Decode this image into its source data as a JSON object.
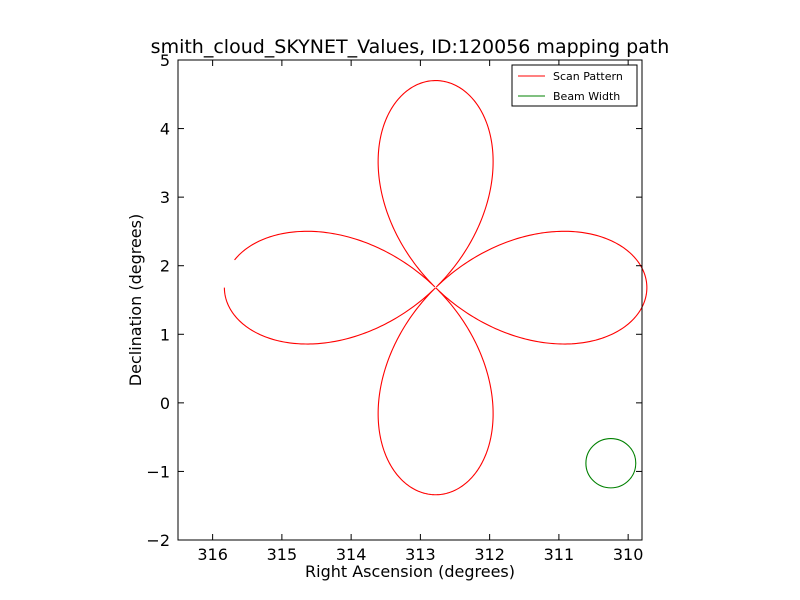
{
  "chart_data": {
    "type": "line",
    "title": "smith_cloud_SKYNET_Values, ID:120056 mapping path",
    "xlabel": "Right Ascension (degrees)",
    "ylabel": "Declination (degrees)",
    "xlim": [
      316.5,
      309.8
    ],
    "ylim": [
      -2,
      5
    ],
    "x_inverted": true,
    "grid": false,
    "legend": "top-right",
    "xticks": [
      316,
      315,
      314,
      313,
      312,
      311,
      310
    ],
    "yticks": [
      -2,
      -1,
      0,
      1,
      2,
      3,
      4,
      5
    ],
    "series": [
      {
        "name": "Scan Pattern",
        "color": "#ff0000",
        "shape": "four-petal rose",
        "center": [
          312.78,
          1.68
        ],
        "petal_length": 3.02,
        "x_scale_deg": 1.01,
        "start_angle_deg": 180,
        "end_angle_deg": 172
      },
      {
        "name": "Beam Width",
        "color": "#008000",
        "shape": "circle",
        "center": [
          310.25,
          -0.88
        ],
        "radius": 0.36
      }
    ]
  }
}
